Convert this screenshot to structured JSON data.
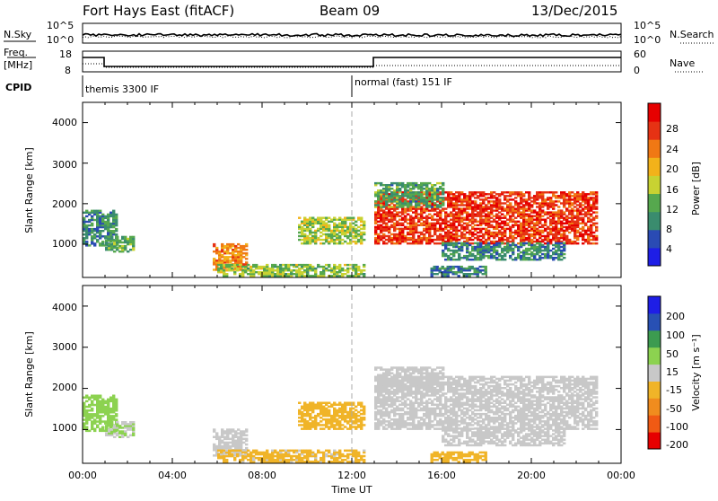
{
  "header": {
    "station": "Fort Hays East (fitACF)",
    "beam": "Beam 09",
    "date": "13/Dec/2015"
  },
  "noise_panel": {
    "left_label": "N.Sky",
    "right_label": "N.Search",
    "left_ticks": [
      "10^5",
      "10^0"
    ],
    "right_ticks": [
      "10^5",
      "10^0"
    ]
  },
  "freq_panel": {
    "left_label_line1": "Freq.",
    "left_label_line2": "[MHz]",
    "right_label": "Nave",
    "left_ticks": [
      "18",
      "8"
    ],
    "right_ticks": [
      "60",
      "0"
    ]
  },
  "cpid": {
    "label": "CPID",
    "modes": [
      {
        "name": "themis 3300 IF",
        "start_hour": 0
      },
      {
        "name": "normal (fast) 151 IF",
        "start_hour": 12
      }
    ]
  },
  "x_axis": {
    "title": "Time UT",
    "tick_labels": [
      "00:00",
      "04:00",
      "08:00",
      "12:00",
      "16:00",
      "20:00",
      "00:00"
    ]
  },
  "power_panel": {
    "ylabel": "Slant Range [km]",
    "y_ticks": [
      "4000",
      "3000",
      "2000",
      "1000"
    ],
    "colorbar_label": "Power [dB]",
    "colorbar_ticks": [
      "28",
      "24",
      "20",
      "16",
      "12",
      "8",
      "4"
    ]
  },
  "velocity_panel": {
    "ylabel": "Slant Range [km]",
    "y_ticks": [
      "4000",
      "3000",
      "2000",
      "1000"
    ],
    "colorbar_label": "Velocity [m s⁻¹]",
    "colorbar_ticks": [
      "200",
      "100",
      "50",
      "15",
      "-15",
      "-50",
      "-100",
      "-200"
    ]
  },
  "chart_data": {
    "type": "heatmap",
    "x_range_hours": [
      0,
      24
    ],
    "y_range_km": [
      180,
      4500
    ],
    "power_scale_db": [
      0,
      32
    ],
    "velocity_scale": [
      -250,
      250
    ],
    "power_colors": [
      "#1e1ee6",
      "#2a4bb4",
      "#3a8c6e",
      "#56a84e",
      "#c8d232",
      "#f2b21a",
      "#f07814",
      "#e63214",
      "#e60000"
    ],
    "velocity_colors": [
      "#e60000",
      "#f05a14",
      "#f08c1e",
      "#f0b428",
      "#c8c8c8",
      "#8cd250",
      "#3c9b50",
      "#2850b4",
      "#1e1ee6"
    ],
    "echo_regions": [
      {
        "t0": 0.0,
        "t1": 1.5,
        "r0": 950,
        "r1": 1850,
        "power_db": 9,
        "velocity": 45
      },
      {
        "t0": 1.0,
        "t1": 2.3,
        "r0": 800,
        "r1": 1200,
        "power_db": 12,
        "velocity": 30
      },
      {
        "t0": 5.8,
        "t1": 7.3,
        "r0": 350,
        "r1": 1000,
        "power_db": 22,
        "velocity": -5
      },
      {
        "t0": 6.0,
        "t1": 12.5,
        "r0": 200,
        "r1": 500,
        "power_db": 14,
        "velocity": -40
      },
      {
        "t0": 9.6,
        "t1": 12.5,
        "r0": 1000,
        "r1": 1650,
        "power_db": 15,
        "velocity": -60
      },
      {
        "t0": 13.0,
        "t1": 22.9,
        "r0": 1000,
        "r1": 2300,
        "power_db": 27,
        "velocity": 0
      },
      {
        "t0": 13.0,
        "t1": 16.0,
        "r0": 1900,
        "r1": 2500,
        "power_db": 11,
        "velocity": -3
      },
      {
        "t0": 16.0,
        "t1": 21.5,
        "r0": 600,
        "r1": 1050,
        "power_db": 9,
        "velocity": 3
      },
      {
        "t0": 15.5,
        "t1": 18.0,
        "r0": 200,
        "r1": 450,
        "power_db": 9,
        "velocity": -45
      }
    ]
  }
}
